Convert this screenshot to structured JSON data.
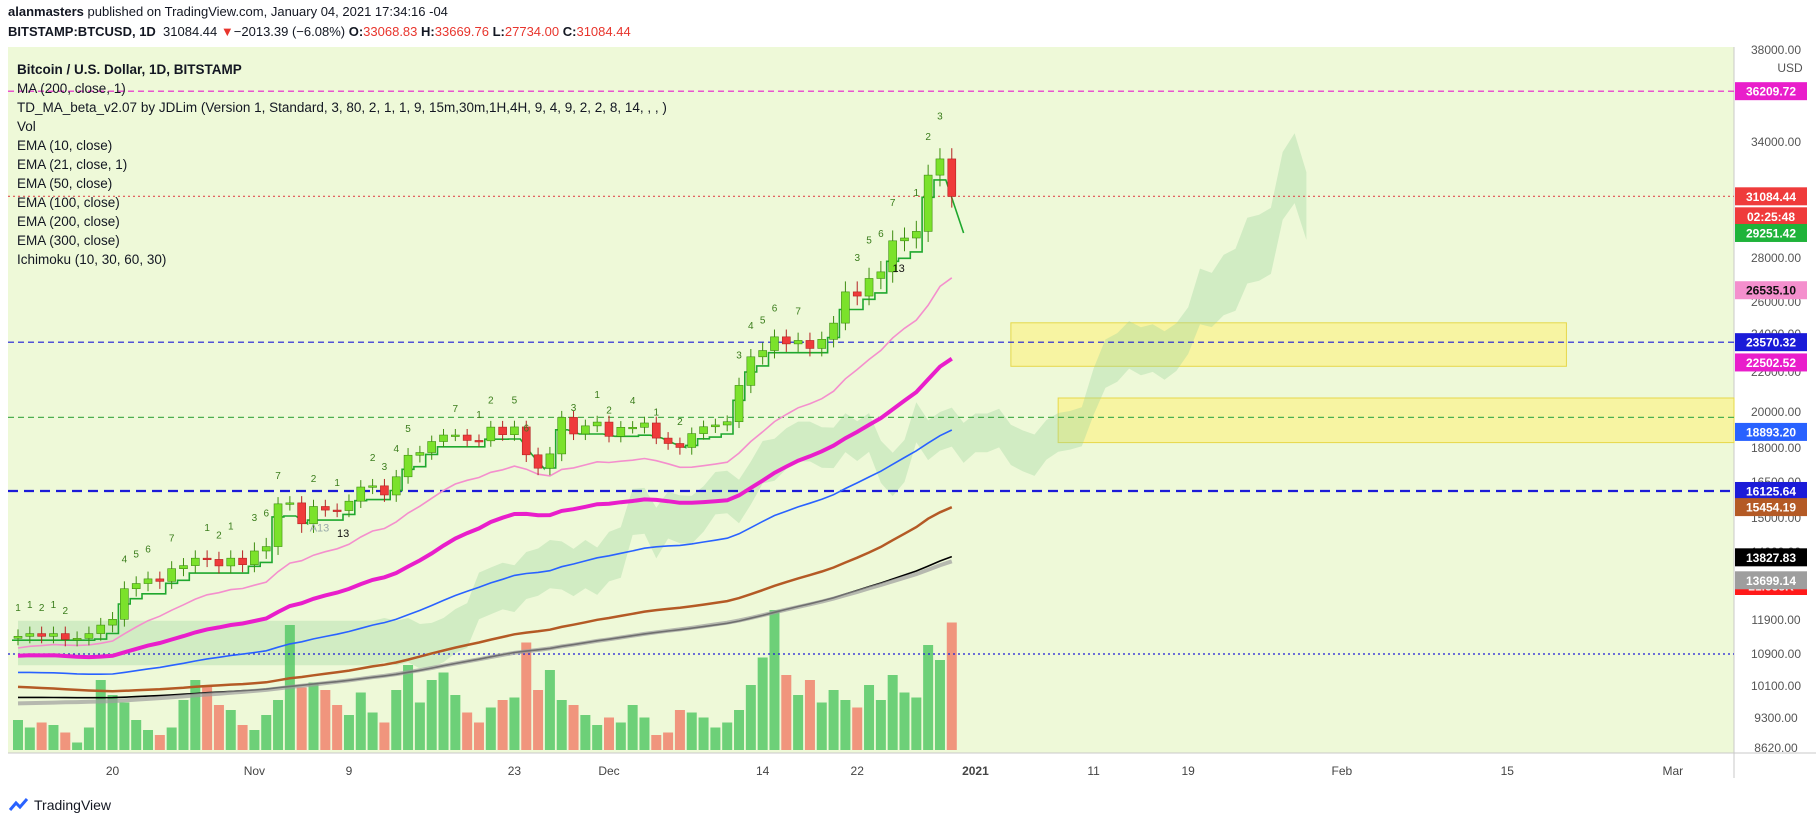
{
  "header": {
    "author": "alanmasters",
    "published_text": "published on TradingView.com, January 04, 2021 17:34:16 -04",
    "symbol": "BITSTAMP:BTCUSD, 1D",
    "last": "31084.44",
    "change_arrow": "▼",
    "change": "−2013.39 (−6.08%)",
    "o_label": "O:",
    "o_value": "33068.83",
    "h_label": "H:",
    "h_value": "33669.76",
    "l_label": "L:",
    "l_value": "27734.00",
    "c_label": "C:",
    "c_value": "31084.44"
  },
  "legend": [
    "Bitcoin / U.S. Dollar, 1D, BITSTAMP",
    "MA (200, close, 1)",
    "TD_MA_beta_v2.07 by JDLim (Version 1, Standard, 3, 80, 2, 1, 1, 9, 15m,30m,1H,4H, 9, 4, 9, 2, 2, 8, 14, , , )",
    "Vol",
    "EMA (10, close)",
    "EMA (21, close, 1)",
    "EMA (50, close)",
    "EMA (100, close)",
    "EMA (200, close)",
    "EMA (300, close)",
    "Ichimoku (10, 30, 60, 30)"
  ],
  "footer": {
    "brand": "TradingView"
  },
  "chart_data": {
    "type": "candlestick",
    "currency": "USD",
    "y_ticks": [
      8620,
      9300,
      10100,
      10900,
      11900,
      12900,
      14000,
      15000,
      16500,
      18000,
      20000,
      22000,
      24000,
      26000,
      28000,
      34000,
      38000
    ],
    "y_tick_labels": [
      "8620.00",
      "9300.00",
      "10100.00",
      "10900.00",
      "11900.00",
      "12900.00",
      "14000.00",
      "15000.00",
      "16500.00",
      "18000.00",
      "20000.00",
      "22000.00",
      "24000.00",
      "26000.00",
      "28000.00",
      "34000.00",
      "38000.00"
    ],
    "x_ticks": [
      {
        "label": "20",
        "date": "2020-10-20"
      },
      {
        "label": "Nov",
        "date": "2020-11-01"
      },
      {
        "label": "9",
        "date": "2020-11-09"
      },
      {
        "label": "23",
        "date": "2020-11-23"
      },
      {
        "label": "Dec",
        "date": "2020-12-01"
      },
      {
        "label": "14",
        "date": "2020-12-14"
      },
      {
        "label": "22",
        "date": "2020-12-22"
      },
      {
        "label": "2021",
        "date": "2021-01-01"
      },
      {
        "label": "11",
        "date": "2021-01-11"
      },
      {
        "label": "19",
        "date": "2021-01-19"
      },
      {
        "label": "Feb",
        "date": "2021-02-01"
      },
      {
        "label": "15",
        "date": "2021-02-15"
      },
      {
        "label": "Mar",
        "date": "2021-03-01"
      }
    ],
    "first_date": "2020-10-12",
    "last_date": "2021-01-04",
    "axis_end_date": "2021-03-15",
    "closes": [
      11420,
      11500,
      11420,
      11500,
      11330,
      11360,
      11500,
      11750,
      11920,
      12820,
      12980,
      13130,
      13050,
      13460,
      13560,
      13800,
      13760,
      13550,
      13800,
      13590,
      14030,
      14160,
      15590,
      15630,
      14830,
      15480,
      15330,
      15310,
      15700,
      16290,
      16340,
      15960,
      16730,
      17680,
      17800,
      18360,
      18720,
      18720,
      18420,
      18400,
      19160,
      18740,
      19170,
      17700,
      17110,
      17740,
      19700,
      18780,
      19230,
      19440,
      18650,
      19150,
      19150,
      19390,
      18550,
      18250,
      18030,
      18800,
      19180,
      19280,
      19460,
      21330,
      22800,
      23130,
      23850,
      23480,
      23660,
      23240,
      23720,
      24680,
      26460,
      26270,
      27070,
      27370,
      28860,
      29000,
      29330,
      32160,
      33060,
      31080
    ],
    "change_direction": [
      1,
      1,
      -1,
      1,
      -1,
      1,
      1,
      1,
      1,
      1,
      1,
      1,
      -1,
      1,
      1,
      1,
      -1,
      -1,
      1,
      -1,
      1,
      1,
      1,
      1,
      -1,
      1,
      -1,
      -1,
      1,
      1,
      1,
      -1,
      1,
      1,
      1,
      1,
      1,
      1,
      -1,
      -1,
      1,
      -1,
      1,
      -1,
      -1,
      1,
      1,
      -1,
      1,
      1,
      -1,
      1,
      1,
      1,
      -1,
      -1,
      -1,
      1,
      1,
      1,
      1,
      1,
      1,
      1,
      1,
      -1,
      1,
      -1,
      1,
      1,
      1,
      -1,
      1,
      1,
      1,
      1,
      1,
      1,
      1,
      -1
    ],
    "volume_pct": [
      12,
      9,
      11,
      10,
      7,
      3,
      9,
      28,
      22,
      19,
      12,
      8,
      6,
      9,
      20,
      28,
      26,
      18,
      16,
      10,
      8,
      14,
      20,
      50,
      25,
      27,
      24,
      18,
      14,
      23,
      15,
      11,
      24,
      34,
      19,
      28,
      31,
      22,
      15,
      11,
      17,
      20,
      21,
      43,
      24,
      32,
      20,
      18,
      14,
      10,
      13,
      11,
      18,
      13,
      6,
      7,
      16,
      15,
      13,
      9,
      11,
      16,
      26,
      37,
      56,
      30,
      22,
      28,
      19,
      24,
      20,
      17,
      26,
      20,
      30,
      23,
      21,
      42,
      36,
      51
    ],
    "volume_last": "21.558K",
    "ema_labels": [
      {
        "name": "EMA (10, close)",
        "value": "26535.10",
        "color": "#f48fcd"
      },
      {
        "name": "EMA (21, close, 1)",
        "value": "22502.52",
        "color": "#e91ecb"
      },
      {
        "name": "EMA (50, close)",
        "value": "18893.20",
        "color": "#2962ff"
      },
      {
        "name": "EMA (100, close)",
        "value": "15454.19",
        "color": "#b45a25"
      },
      {
        "name": "EMA (200, close)",
        "value": "13827.83",
        "color": "#000000"
      },
      {
        "name": "MA (200, close, 1)",
        "value": "13699.14",
        "color": "#9e9e9e"
      }
    ],
    "ema_end_values": [
      27100,
      22700,
      19000,
      15450,
      13850,
      13700
    ],
    "ema_start_values": [
      11000,
      10800,
      10400,
      10050,
      9800,
      9650
    ],
    "price_tags": [
      {
        "value": "36209.72",
        "color": "#e91ecb"
      },
      {
        "value": "31084.44",
        "color": "#ef3b3b"
      },
      {
        "value": "02:25:48",
        "color": "#ef3b3b"
      },
      {
        "value": "29251.42",
        "color": "#1fb33a"
      },
      {
        "value": "23570.32",
        "color": "#1b1bd8"
      },
      {
        "value": "16125.64",
        "color": "#1b1bd8"
      },
      {
        "value": "21.558K",
        "color": "#ff1a1a"
      }
    ],
    "levels": [
      {
        "price": 36209.72,
        "style": "dashed",
        "color": "#e91ecb"
      },
      {
        "price": 31084.44,
        "style": "dotted",
        "color": "#e05050"
      },
      {
        "price": 23570.32,
        "style": "dashed",
        "color": "#1b1bd8"
      },
      {
        "price": 16125.64,
        "style": "dashed-heavy",
        "color": "#1b1bd8"
      },
      {
        "price": 19700,
        "style": "dashed",
        "color": "#4caf50"
      },
      {
        "price": 10900,
        "style": "dotted",
        "color": "#1b1bd8"
      }
    ],
    "zones": [
      {
        "from_date": "2021-01-04",
        "to_date": "2021-02-20",
        "low": 22300,
        "high": 24700,
        "color": "#fff176"
      },
      {
        "from_date": "2021-01-08",
        "to_date": "2021-03-15",
        "low": 18300,
        "high": 20700,
        "color": "#fff176"
      }
    ],
    "td_counts": [
      {
        "day": 0,
        "text": "1"
      },
      {
        "day": 1,
        "text": "1"
      },
      {
        "day": 2,
        "text": "2"
      },
      {
        "day": 3,
        "text": "1"
      },
      {
        "day": 4,
        "text": "2"
      },
      {
        "day": 9,
        "text": "4"
      },
      {
        "day": 10,
        "text": "5"
      },
      {
        "day": 11,
        "text": "6"
      },
      {
        "day": 13,
        "text": "7"
      },
      {
        "day": 16,
        "text": "1"
      },
      {
        "day": 17,
        "text": "2"
      },
      {
        "day": 18,
        "text": "1"
      },
      {
        "day": 20,
        "text": "3"
      },
      {
        "day": 21,
        "text": "6"
      },
      {
        "day": 22,
        "text": "7"
      },
      {
        "day": 25,
        "text": "2"
      },
      {
        "day": 27,
        "text": "1"
      },
      {
        "day": 30,
        "text": "2"
      },
      {
        "day": 31,
        "text": "3"
      },
      {
        "day": 32,
        "text": "4"
      },
      {
        "day": 33,
        "text": "5"
      },
      {
        "day": 37,
        "text": "7"
      },
      {
        "day": 39,
        "text": "1"
      },
      {
        "day": 40,
        "text": "2"
      },
      {
        "day": 42,
        "text": "5"
      },
      {
        "day": 43,
        "text": "6"
      },
      {
        "day": 47,
        "text": "3"
      },
      {
        "day": 49,
        "text": "1"
      },
      {
        "day": 50,
        "text": "2"
      },
      {
        "day": 52,
        "text": "4"
      },
      {
        "day": 54,
        "text": "1"
      },
      {
        "day": 56,
        "text": "2"
      },
      {
        "day": 61,
        "text": "3"
      },
      {
        "day": 62,
        "text": "4"
      },
      {
        "day": 63,
        "text": "5"
      },
      {
        "day": 64,
        "text": "6"
      },
      {
        "day": 66,
        "text": "7"
      },
      {
        "day": 71,
        "text": "3"
      },
      {
        "day": 72,
        "text": "5"
      },
      {
        "day": 73,
        "text": "6"
      },
      {
        "day": 74,
        "text": "7"
      },
      {
        "day": 76,
        "text": "1"
      },
      {
        "day": 77,
        "text": "2"
      },
      {
        "day": 78,
        "text": "3"
      }
    ],
    "td13_labels": [
      {
        "day": 27,
        "text": "13"
      },
      {
        "day": 74,
        "text": "13"
      },
      {
        "day": 25,
        "text": "A13"
      }
    ],
    "colors": {
      "up": "#7be22b",
      "down": "#ef3b3b",
      "volume_up": "#5ecb6e",
      "volume_down": "#f08a73",
      "background": "#eef9d8",
      "cloud": "#9ad39d"
    }
  }
}
